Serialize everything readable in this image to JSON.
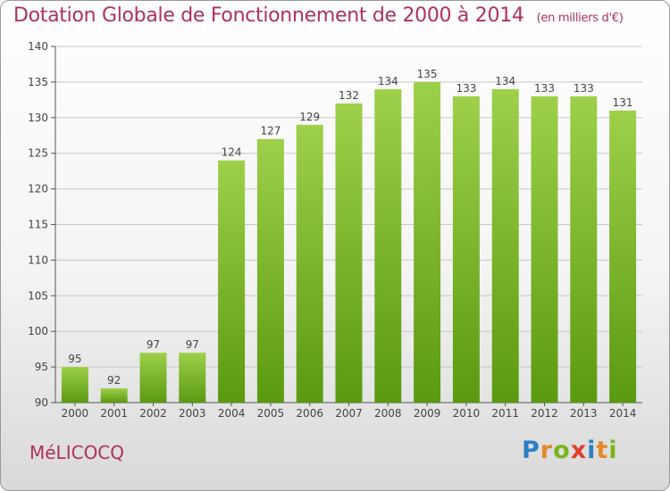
{
  "title": "Dotation Globale de Fonctionnement de 2000 à 2014",
  "unit": "(en milliers d'€)",
  "commune": "MéLICOCQ",
  "logo": {
    "letters": [
      "P",
      "r",
      "o",
      "x",
      "i",
      "t",
      "i"
    ],
    "colors": [
      "#2c7fc4",
      "#e5892a",
      "#7ab51d",
      "#e23f2a",
      "#2c7fc4",
      "#e5892a",
      "#7ab51d"
    ]
  },
  "colors": {
    "bar_top": "#9ed04a",
    "bar_bottom": "#5a9a10",
    "title": "#b0305e",
    "grid": "#c8c8c8",
    "axis": "#555555",
    "tick_label": "#444444"
  },
  "chart_data": {
    "type": "bar",
    "title": "Dotation Globale de Fonctionnement de 2000 à 2014",
    "xlabel": "",
    "ylabel": "",
    "categories": [
      "2000",
      "2001",
      "2002",
      "2003",
      "2004",
      "2005",
      "2006",
      "2007",
      "2008",
      "2009",
      "2010",
      "2011",
      "2012",
      "2013",
      "2014"
    ],
    "values": [
      95,
      92,
      97,
      97,
      124,
      127,
      129,
      132,
      134,
      135,
      133,
      134,
      133,
      133,
      131
    ],
    "ylim": [
      90,
      140
    ],
    "yticks": [
      90,
      95,
      100,
      105,
      110,
      115,
      120,
      125,
      130,
      135,
      140
    ],
    "grid": true
  }
}
